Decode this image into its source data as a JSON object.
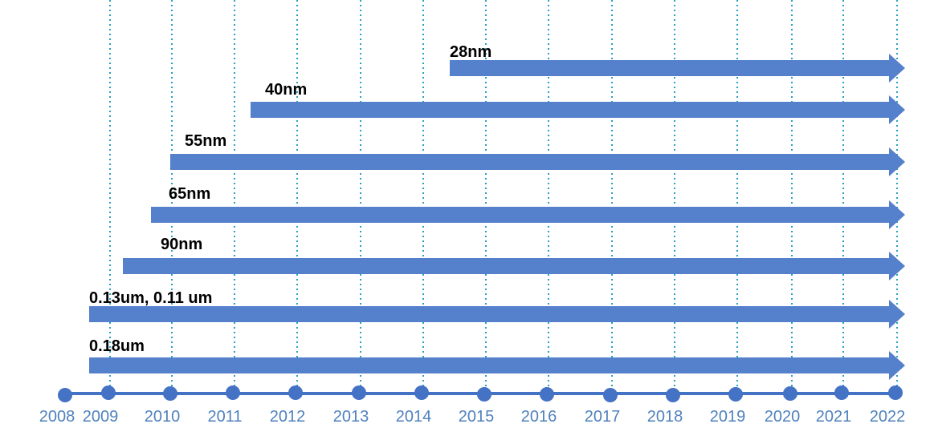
{
  "timeline": {
    "years": [
      "2008",
      "2009",
      "2010",
      "2011",
      "2012",
      "2013",
      "2014",
      "2015",
      "2016",
      "2017",
      "2018",
      "2019",
      "2020",
      "2021",
      "2022"
    ],
    "nodes": [
      {
        "label": "28nm"
      },
      {
        "label": "40nm"
      },
      {
        "label": "55nm"
      },
      {
        "label": "65nm"
      },
      {
        "label": "90nm"
      },
      {
        "label": "0.13um, 0.11 um"
      },
      {
        "label": "0.18um"
      }
    ]
  }
}
